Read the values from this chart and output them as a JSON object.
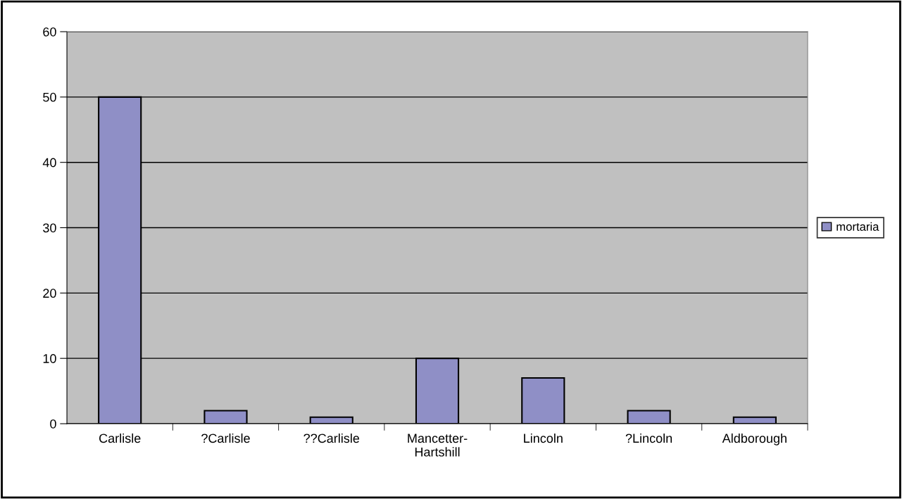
{
  "chart_data": {
    "type": "bar",
    "categories": [
      "Carlisle",
      "?Carlisle",
      "??Carlisle",
      "Mancetter-\nHartshill",
      "Lincoln",
      "?Lincoln",
      "Aldborough"
    ],
    "series": [
      {
        "name": "mortaria",
        "color": "#8f8fc6",
        "values": [
          50,
          2,
          1,
          10,
          7,
          2,
          1
        ]
      }
    ],
    "ylim": [
      0,
      60
    ],
    "yticks": [
      0,
      10,
      20,
      30,
      40,
      50,
      60
    ],
    "grid": "y",
    "legend": "right"
  }
}
